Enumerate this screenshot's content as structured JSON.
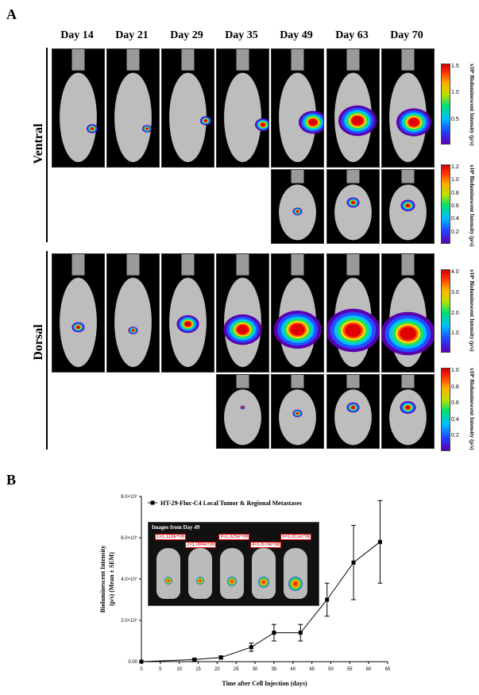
{
  "panel_a_letter": "A",
  "panel_b_letter": "B",
  "days": [
    "Day 14",
    "Day 21",
    "Day 29",
    "Day 35",
    "Day 49",
    "Day 63",
    "Day 70"
  ],
  "views": {
    "ventral": "Ventral",
    "dorsal": "Dorsal"
  },
  "colorbars": [
    {
      "title": "x10⁶ Bioluminescent Intensity (p/s)",
      "ticks": [
        "1.5",
        "1.0",
        "0.5"
      ]
    },
    {
      "title": "x10⁶ Bioluminescent Intensity (p/s)",
      "ticks": [
        "1.2",
        "1.0",
        "0.8",
        "0.6",
        "0.4",
        "0.2"
      ]
    },
    {
      "title": "x10⁶ Bioluminescent Intensity (p/s)",
      "ticks": [
        "4.0",
        "3.0",
        "2.0",
        "1.0"
      ]
    },
    {
      "title": "x10⁶ Bioluminescent Intensity (p/s)",
      "ticks": [
        "1.0",
        "0.8",
        "0.6",
        "0.4",
        "0.2"
      ]
    }
  ],
  "inset": {
    "title": "Images from Day 49",
    "labels": [
      "1=1.119e+08",
      "2=1.084e+08",
      "3=1.025e+08",
      "4=1.670e+08",
      "5=3.001e+08"
    ]
  },
  "chart_data": {
    "type": "line",
    "legend": "HT-29-Fluc-C4 Local Tumor & Regional Metastases",
    "legend_position": "top-left",
    "xlabel": "Time after Cell Injection (days)",
    "ylabel_line1": "Bioluminescent Intensity",
    "ylabel_line2": "(p/s) (Mean ± SEM)",
    "xlim": [
      0,
      65
    ],
    "ylim": [
      0,
      80000000.0
    ],
    "x_ticks": [
      "0",
      "5",
      "10",
      "15",
      "20",
      "25",
      "30",
      "35",
      "40",
      "45",
      "50",
      "55",
      "60",
      "65"
    ],
    "y_ticks": [
      "0.00",
      "2.0×10⁷",
      "4.0×10⁷",
      "6.0×10⁷",
      "8.0×10⁷"
    ],
    "series": [
      {
        "name": "HT-29-Fluc-C4 Local Tumor & Regional Metastases",
        "x": [
          0,
          14,
          21,
          29,
          35,
          42,
          49,
          56,
          63
        ],
        "y": [
          0,
          1000000,
          2000000,
          7000000,
          14000000,
          14000000,
          30000000,
          48000000,
          58000000
        ],
        "err": [
          0,
          500000,
          800000,
          2000000,
          4000000,
          4000000,
          8000000,
          18000000,
          20000000
        ]
      }
    ],
    "grid": false
  }
}
